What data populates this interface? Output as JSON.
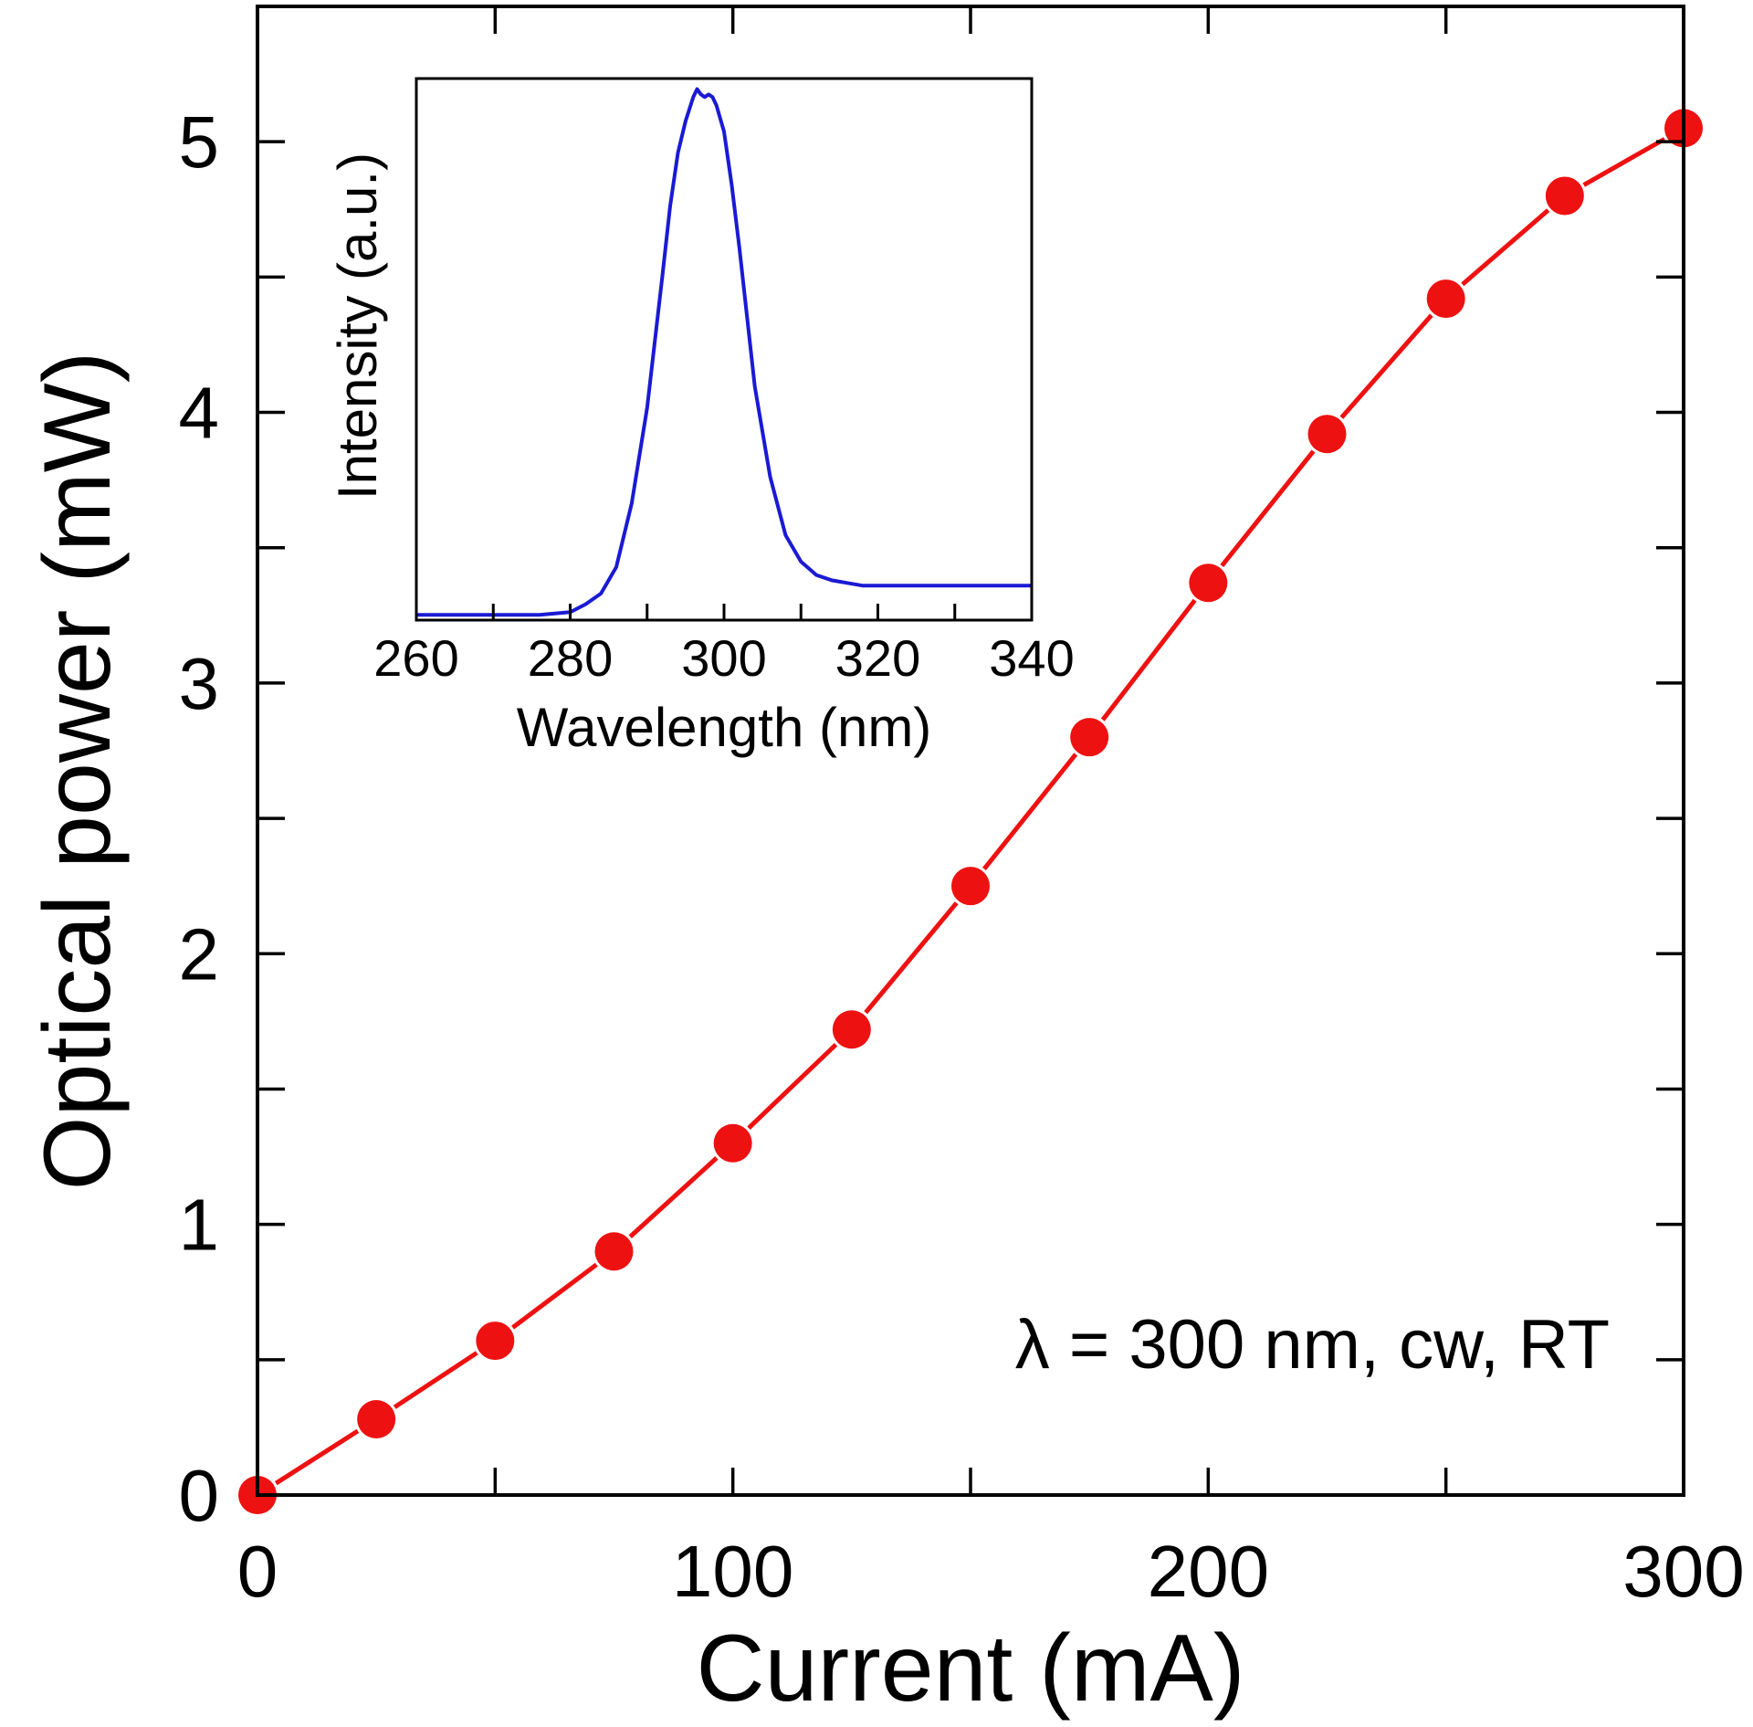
{
  "colors": {
    "main_series": "#ee1111",
    "inset_series": "#1a1ad4",
    "axis": "#000000",
    "background": "#ffffff"
  },
  "chart_data": [
    {
      "type": "line",
      "markers": "filled-circle",
      "xlabel": "Current (mA)",
      "ylabel": "Optical power (mW)",
      "xlim": [
        0,
        300
      ],
      "ylim": [
        0,
        5.5
      ],
      "xticks": [
        "0",
        "100",
        "200",
        "300"
      ],
      "yticks": [
        "0",
        "1",
        "2",
        "3",
        "4",
        "5"
      ],
      "grid": false,
      "annotation": "λ = 300 nm, cw, RT",
      "x": [
        0,
        25,
        50,
        75,
        100,
        125,
        150,
        175,
        200,
        225,
        250,
        275,
        300
      ],
      "y": [
        0,
        0.28,
        0.57,
        0.9,
        1.3,
        1.72,
        2.25,
        2.8,
        3.37,
        3.92,
        4.42,
        4.8,
        5.05
      ]
    },
    {
      "type": "line",
      "inset": true,
      "xlabel": "Wavelength (nm)",
      "ylabel": "Intensity (a.u.)",
      "xlim": [
        260,
        340
      ],
      "ylim": [
        0,
        1.02
      ],
      "xticks": [
        "260",
        "280",
        "300",
        "320",
        "340"
      ],
      "grid": false,
      "x": [
        260,
        264,
        268,
        272,
        276,
        280,
        282,
        284,
        286,
        288,
        290,
        292,
        293,
        294,
        295,
        296,
        296.5,
        297,
        297.5,
        298,
        298.5,
        299,
        300,
        301,
        302,
        303,
        304,
        306,
        308,
        310,
        312,
        314,
        316,
        318,
        320,
        322,
        326,
        330,
        334,
        338,
        340
      ],
      "y": [
        0.01,
        0.01,
        0.01,
        0.01,
        0.01,
        0.015,
        0.03,
        0.05,
        0.1,
        0.22,
        0.4,
        0.65,
        0.78,
        0.88,
        0.94,
        0.985,
        1.0,
        0.99,
        0.985,
        0.99,
        0.985,
        0.97,
        0.92,
        0.82,
        0.7,
        0.57,
        0.44,
        0.27,
        0.16,
        0.11,
        0.085,
        0.075,
        0.07,
        0.065,
        0.065,
        0.065,
        0.065,
        0.065,
        0.065,
        0.065,
        0.065
      ]
    }
  ]
}
